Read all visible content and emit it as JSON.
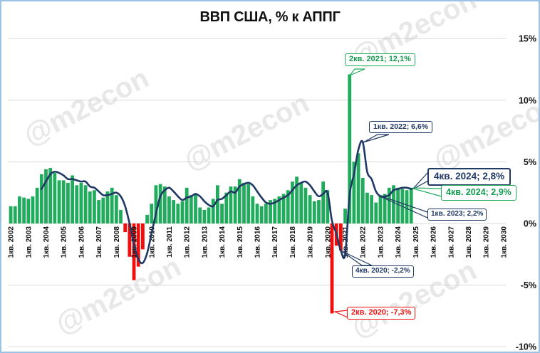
{
  "watermark_text": "@m2econ",
  "chart_data": {
    "type": "bar+line",
    "title": "ВВП США, % к АППГ",
    "ylim": [
      -10,
      15
    ],
    "grid": true,
    "y_axis_side": "right",
    "y_tick_labels": [
      "15%",
      "10%",
      "5%",
      "0%",
      "-5%",
      "-10%"
    ],
    "y_tick_values": [
      15,
      10,
      5,
      0,
      -5,
      -10
    ],
    "x_start_quarter": "1кв. 2002",
    "x_end_quarter": "1кв. 2030",
    "x_slots": 113,
    "x_tick_labels": [
      "1кв. 2002",
      "1кв. 2003",
      "1кв. 2004",
      "1кв. 2005",
      "1кв. 2006",
      "1кв. 2007",
      "1кв. 2008",
      "1кв. 2009",
      "1кв. 2010",
      "1кв. 2011",
      "1кв. 2012",
      "1кв. 2013",
      "1кв. 2014",
      "1кв. 2015",
      "1кв. 2016",
      "1кв. 2017",
      "1кв. 2018",
      "1кв. 2019",
      "1кв. 2020",
      "1кв. 2021",
      "1кв. 2022",
      "1кв. 2023",
      "1кв. 2024",
      "1кв. 2025",
      "1кв. 2026",
      "1кв. 2027",
      "1кв. 2028",
      "1кв. 2029",
      "1кв. 2030"
    ],
    "bar_series": {
      "start_index": 0,
      "values": [
        1.4,
        1.4,
        2.2,
        2.1,
        2.0,
        2.2,
        2.9,
        4.0,
        4.4,
        4.5,
        4.1,
        3.5,
        3.5,
        3.3,
        3.9,
        3.1,
        3.3,
        3.1,
        2.6,
        2.7,
        1.9,
        2.1,
        2.6,
        2.9,
        2.3,
        1.1,
        -0.7,
        -2.7,
        -4.6,
        -3.5,
        -2.1,
        0.7,
        1.6,
        3.1,
        3.2,
        3.0,
        2.2,
        1.9,
        1.6,
        1.8,
        2.9,
        2.3,
        2.4,
        1.3,
        1.1,
        1.3,
        2.0,
        3.1,
        1.6,
        2.5,
        3.0,
        3.0,
        3.6,
        3.3,
        3.2,
        2.2,
        1.6,
        1.4,
        1.6,
        1.9,
        2.0,
        2.2,
        2.4,
        2.7,
        3.4,
        3.8,
        3.3,
        2.9,
        2.3,
        1.8,
        1.9,
        3.4,
        2.7,
        -7.3,
        -1.8,
        -2.2,
        1.2,
        12.1,
        5.0,
        5.7,
        3.7,
        2.5,
        2.3,
        1.7,
        2.3,
        2.4,
        2.9,
        3.1,
        2.9,
        2.8,
        2.7,
        2.9
      ]
    },
    "line_series": {
      "start_index": 7,
      "values": [
        2.8,
        3.4,
        4.0,
        4.2,
        4.1,
        3.9,
        3.6,
        3.6,
        3.5,
        3.4,
        3.4,
        3.0,
        2.9,
        2.6,
        2.3,
        2.3,
        2.4,
        2.5,
        2.2,
        1.4,
        0.0,
        -1.7,
        -2.9,
        -3.2,
        -2.4,
        -0.8,
        0.8,
        2.2,
        2.7,
        2.9,
        2.6,
        2.2,
        1.9,
        2.1,
        2.2,
        2.4,
        2.2,
        1.8,
        1.5,
        1.4,
        1.9,
        2.0,
        2.3,
        2.6,
        2.5,
        3.0,
        3.2,
        3.3,
        3.1,
        2.6,
        2.1,
        1.7,
        1.6,
        1.7,
        1.9,
        2.1,
        2.3,
        2.7,
        3.1,
        3.3,
        3.4,
        3.1,
        2.6,
        2.2,
        2.4,
        2.5,
        0.2,
        -0.8,
        -2.2,
        -2.5,
        2.3,
        4.0,
        6.0,
        6.6,
        4.2,
        3.6,
        2.6,
        2.2,
        2.2,
        2.3,
        2.7,
        2.8,
        2.9,
        2.9,
        2.8
      ]
    },
    "annotations": [
      {
        "label": "2кв. 2021; 12,1%",
        "series": "bar",
        "value": 12.1
      },
      {
        "label": "1кв. 2022; 6,6%",
        "series": "line",
        "value": 6.6
      },
      {
        "label": "4кв. 2024; 2,8%",
        "series": "line",
        "value": 2.8
      },
      {
        "label": "4кв. 2024; 2,9%",
        "series": "bar",
        "value": 2.9
      },
      {
        "label": "1кв. 2023; 2,2%",
        "series": "line",
        "value": 2.2
      },
      {
        "label": "4кв. 2020; -2,2%",
        "series": "line",
        "value": -2.2
      },
      {
        "label": "2кв. 2020; -7,3%",
        "series": "bar",
        "value": -7.3
      }
    ],
    "colors": {
      "bar_positive": "#21ac5d",
      "bar_negative": "#ee0f0f",
      "line": "#1f3864",
      "grid": "#d9d9d9",
      "frame": "#9cc2e5",
      "watermark": "#c8c8c8"
    }
  }
}
